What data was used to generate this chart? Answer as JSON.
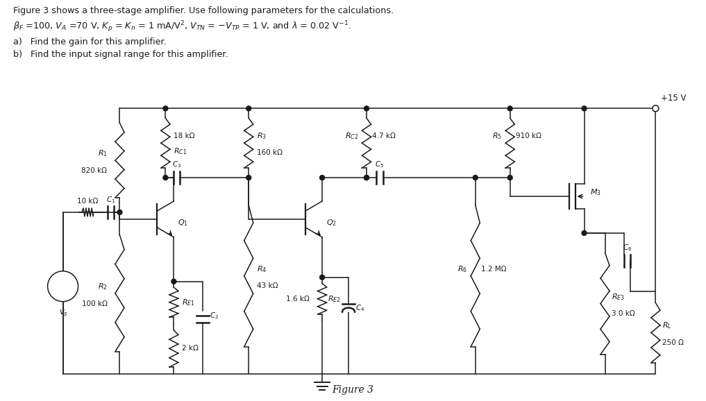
{
  "title_line1": "Figure 3 shows a three-stage amplifier. Use following parameters for the calculations.",
  "title_line2": "$\\beta_F$ =100, $V_A$ =70 V, $K_p$ = $K_n$ = 1 mA/V$^2$, $V_{TN}$ = $-V_{TP}$ = 1 V, and $\\lambda$ = 0.02 V$^{-1}$.",
  "qa": "a)   Find the gain for this amplifier.",
  "qb": "b)   Find the input signal range for this amplifier.",
  "fig_label": "Figure 3",
  "bg_color": "#ffffff",
  "text_color": "#1a1a1a",
  "line_color": "#1a1a1a"
}
